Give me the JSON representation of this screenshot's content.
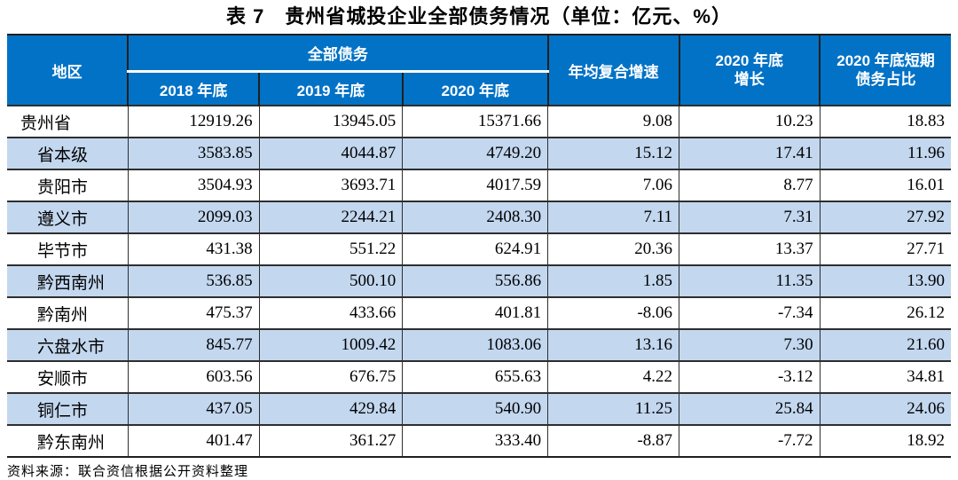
{
  "title": "表 7　贵州省城投企业全部债务情况（单位：亿元、%）",
  "table": {
    "header": {
      "region": "地区",
      "total_debt_group": "全部债务",
      "years": [
        "2018 年底",
        "2019 年底",
        "2020 年底"
      ],
      "cagr": "年均复合增速",
      "growth_2020": "2020 年底\n增长",
      "short_term_ratio_2020": "2020 年底短期\n债务占比"
    },
    "rows": [
      {
        "region": "贵州省",
        "indent": false,
        "values": [
          "12919.26",
          "13945.05",
          "15371.66",
          "9.08",
          "10.23",
          "18.83"
        ]
      },
      {
        "region": "省本级",
        "indent": true,
        "values": [
          "3583.85",
          "4044.87",
          "4749.20",
          "15.12",
          "17.41",
          "11.96"
        ]
      },
      {
        "region": "贵阳市",
        "indent": true,
        "values": [
          "3504.93",
          "3693.71",
          "4017.59",
          "7.06",
          "8.77",
          "16.01"
        ]
      },
      {
        "region": "遵义市",
        "indent": true,
        "values": [
          "2099.03",
          "2244.21",
          "2408.30",
          "7.11",
          "7.31",
          "27.92"
        ]
      },
      {
        "region": "毕节市",
        "indent": true,
        "values": [
          "431.38",
          "551.22",
          "624.91",
          "20.36",
          "13.37",
          "27.71"
        ]
      },
      {
        "region": "黔西南州",
        "indent": true,
        "values": [
          "536.85",
          "500.10",
          "556.86",
          "1.85",
          "11.35",
          "13.90"
        ]
      },
      {
        "region": "黔南州",
        "indent": true,
        "values": [
          "475.37",
          "433.66",
          "401.81",
          "-8.06",
          "-7.34",
          "26.12"
        ]
      },
      {
        "region": "六盘水市",
        "indent": true,
        "values": [
          "845.77",
          "1009.42",
          "1083.06",
          "13.16",
          "7.30",
          "21.60"
        ]
      },
      {
        "region": "安顺市",
        "indent": true,
        "values": [
          "603.56",
          "676.75",
          "655.63",
          "4.22",
          "-3.12",
          "34.81"
        ]
      },
      {
        "region": "铜仁市",
        "indent": true,
        "values": [
          "437.05",
          "429.84",
          "540.90",
          "11.25",
          "25.84",
          "24.06"
        ]
      },
      {
        "region": "黔东南州",
        "indent": true,
        "values": [
          "401.47",
          "361.27",
          "333.40",
          "-8.87",
          "-7.72",
          "18.92"
        ]
      }
    ]
  },
  "footer": {
    "source": "资料来源：联合资信根据公开资料整理"
  },
  "colors": {
    "header_bg": "#0272c6",
    "alt_row_bg": "#c3d7ef",
    "header_text": "#ffffff",
    "body_text": "#000000"
  }
}
